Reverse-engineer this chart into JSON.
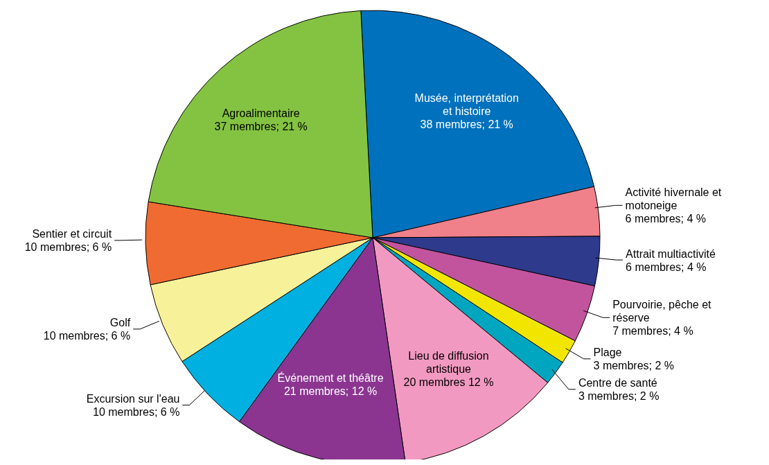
{
  "chart_data": {
    "type": "pie",
    "categories": [
      "Musée, interprétation et histoire",
      "Activité hivernale et motoneige",
      "Attrait multiactivité",
      "Pourvoirie, pêche et réserve",
      "Plage",
      "Centre de santé",
      "Lieu de diffusion artistique",
      "Événement et théâtre",
      "Excursion sur l'eau",
      "Golf",
      "Sentier et circuit",
      "Agroalimentaire"
    ],
    "values": [
      38,
      6,
      6,
      7,
      3,
      3,
      20,
      21,
      10,
      10,
      10,
      37
    ],
    "colors": [
      "#0071bc",
      "#f0808a",
      "#2e3a8c",
      "#c2549e",
      "#f2e600",
      "#00a6c0",
      "#f299c1",
      "#8b3591",
      "#00b0e0",
      "#f7f29a",
      "#f06b32",
      "#84c341"
    ],
    "value_labels": [
      "38 membres; 21 %",
      "6 membres; 4 %",
      "6 membres; 4 %",
      "7 membres; 4 %",
      "3 membres; 2 %",
      "3 membres; 2 %",
      "20 membres 12 %",
      "21 membres; 12 %",
      "10 membres; 6 %",
      "10 membres; 6 %",
      "10 membres; 6 %",
      "37 membres; 21 %"
    ]
  }
}
